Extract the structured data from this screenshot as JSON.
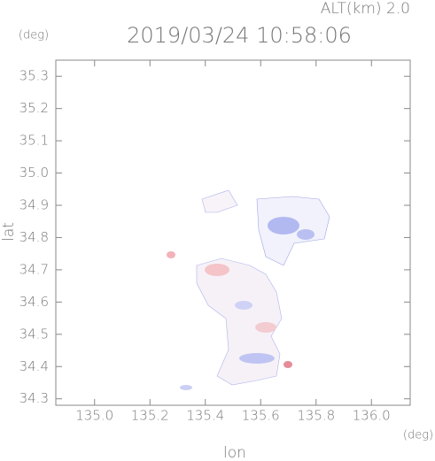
{
  "chart_data": {
    "type": "map",
    "title": "2019/03/24 10:58:06",
    "altitude_label": "ALT(km) 2.0",
    "y_unit": "(deg)",
    "x_unit": "(deg)",
    "x_label": "lon",
    "y_label": "lat",
    "xlim": [
      134.86,
      136.14
    ],
    "xticks": [
      {
        "value": 135,
        "label": "135.0"
      },
      135.2,
      135.4,
      135.6,
      135.8,
      {
        "value": 136,
        "label": "136.0"
      }
    ],
    "ylim": [
      34.28,
      35.35
    ],
    "yticks": [
      34.3,
      34.4,
      34.5,
      34.6,
      34.7,
      34.8,
      34.9,
      {
        "value": 35,
        "label": "35.0"
      },
      35.1,
      35.2,
      35.3
    ]
  }
}
